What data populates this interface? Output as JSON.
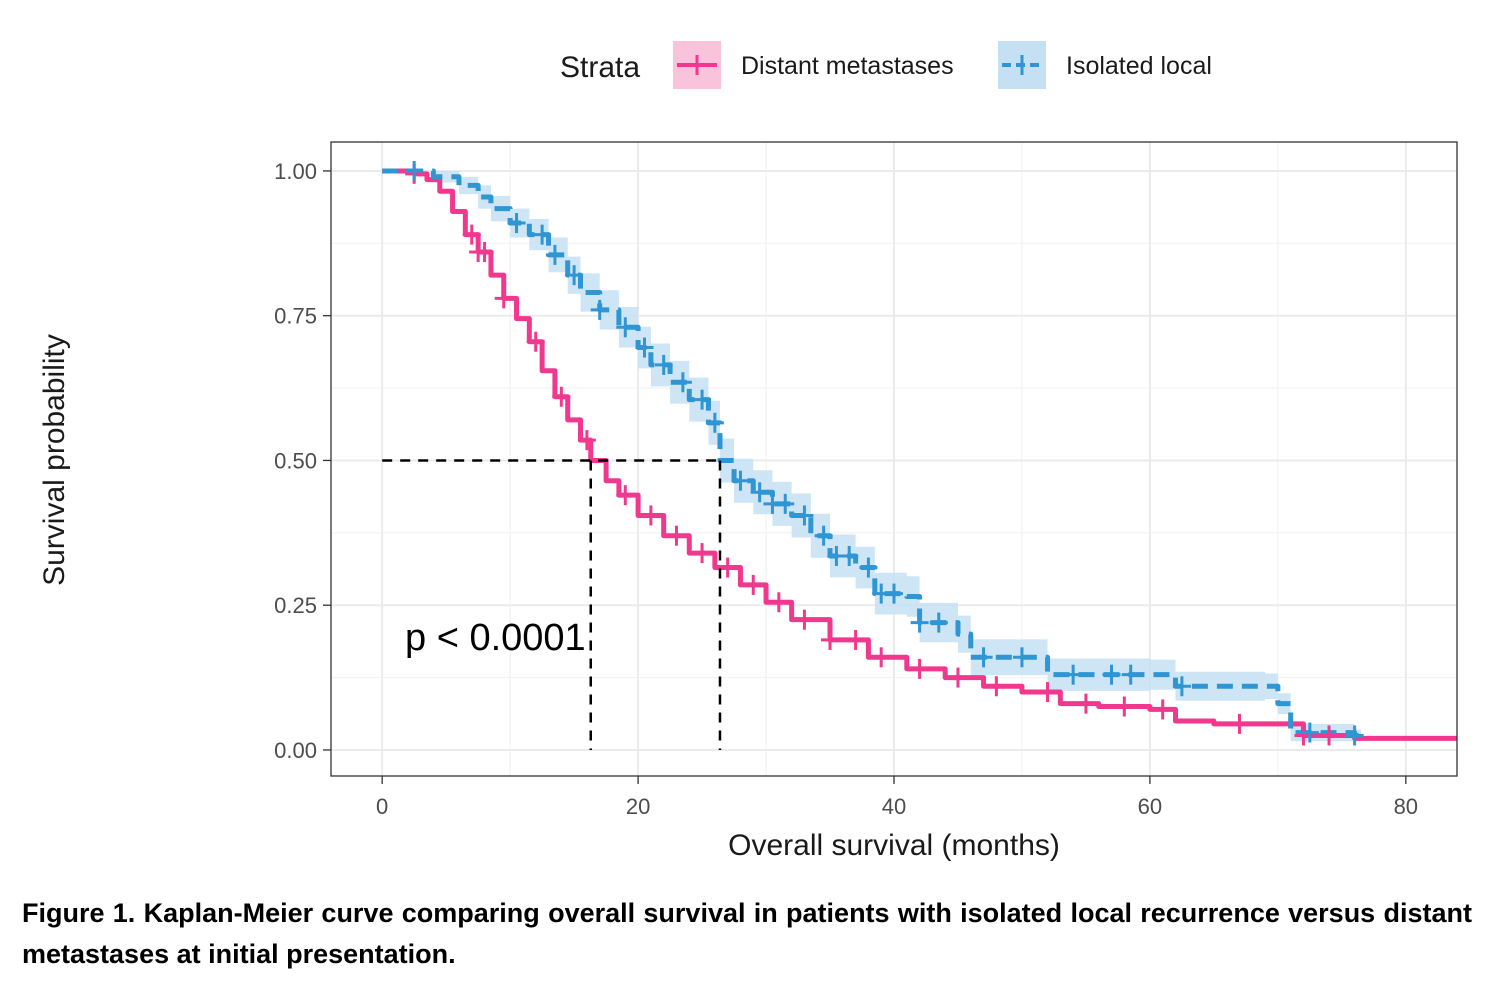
{
  "chart_data": {
    "type": "line",
    "subtype": "kaplan-meier",
    "xlabel": "Overall survival (months)",
    "ylabel": "Survival probability",
    "xlim": [
      -4,
      84
    ],
    "ylim": [
      -0.045,
      1.05
    ],
    "x_ticks": [
      0,
      20,
      40,
      60,
      80
    ],
    "x_tick_labels": [
      "0",
      "20",
      "40",
      "60",
      "80"
    ],
    "y_ticks": [
      0,
      0.25,
      0.5,
      0.75,
      1.0
    ],
    "y_tick_labels": [
      "0.00",
      "0.25",
      "0.50",
      "0.75",
      "1.00"
    ],
    "grid": true,
    "legend": {
      "title": "Strata",
      "position": "top",
      "entries": [
        "Distant metastases",
        "Isolated local"
      ]
    },
    "annotation": "p < 0.0001",
    "median_lines": {
      "y": 0.5,
      "x": [
        16.3,
        26.4
      ]
    },
    "series": [
      {
        "name": "Distant metastases",
        "color": "#F0388F",
        "line_style": "solid",
        "points": [
          [
            0,
            1.0
          ],
          [
            1.5,
            1.0
          ],
          [
            2.5,
            0.995
          ],
          [
            3.5,
            0.985
          ],
          [
            4.5,
            0.965
          ],
          [
            5.5,
            0.93
          ],
          [
            6.5,
            0.89
          ],
          [
            7.5,
            0.86
          ],
          [
            8.5,
            0.82
          ],
          [
            9.5,
            0.78
          ],
          [
            10.5,
            0.745
          ],
          [
            11.5,
            0.705
          ],
          [
            12.5,
            0.655
          ],
          [
            13.5,
            0.61
          ],
          [
            14.5,
            0.57
          ],
          [
            15.5,
            0.535
          ],
          [
            16.3,
            0.5
          ],
          [
            17.5,
            0.465
          ],
          [
            18.5,
            0.44
          ],
          [
            20,
            0.405
          ],
          [
            22,
            0.37
          ],
          [
            24,
            0.34
          ],
          [
            26,
            0.315
          ],
          [
            28,
            0.285
          ],
          [
            30,
            0.255
          ],
          [
            32,
            0.225
          ],
          [
            35,
            0.19
          ],
          [
            38,
            0.16
          ],
          [
            41,
            0.14
          ],
          [
            44,
            0.125
          ],
          [
            47,
            0.11
          ],
          [
            50,
            0.1
          ],
          [
            53,
            0.08
          ],
          [
            56,
            0.075
          ],
          [
            60,
            0.07
          ],
          [
            62,
            0.05
          ],
          [
            65,
            0.045
          ],
          [
            70,
            0.045
          ],
          [
            72,
            0.025
          ],
          [
            76,
            0.02
          ],
          [
            84,
            0.02
          ]
        ],
        "censor_x": [
          2.5,
          7,
          7.5,
          8,
          9.5,
          12,
          14,
          16,
          19,
          21,
          23,
          25,
          27,
          29,
          31,
          33,
          35,
          37,
          39,
          42,
          45,
          48,
          52,
          55,
          58,
          61,
          67,
          72,
          74
        ]
      },
      {
        "name": "Isolated local",
        "color": "#2F95D3",
        "line_style": "dashed",
        "points": [
          [
            0,
            1.0
          ],
          [
            2.5,
            1.0
          ],
          [
            4,
            0.99
          ],
          [
            6,
            0.975
          ],
          [
            7.5,
            0.955
          ],
          [
            8.5,
            0.935
          ],
          [
            10,
            0.91
          ],
          [
            11.5,
            0.89
          ],
          [
            13,
            0.855
          ],
          [
            14.5,
            0.82
          ],
          [
            15.5,
            0.79
          ],
          [
            17,
            0.76
          ],
          [
            18.5,
            0.73
          ],
          [
            20,
            0.695
          ],
          [
            21,
            0.665
          ],
          [
            22.5,
            0.635
          ],
          [
            24,
            0.605
          ],
          [
            25.5,
            0.565
          ],
          [
            26.4,
            0.5
          ],
          [
            27.5,
            0.465
          ],
          [
            29,
            0.445
          ],
          [
            30.5,
            0.425
          ],
          [
            32,
            0.405
          ],
          [
            33.5,
            0.37
          ],
          [
            35,
            0.335
          ],
          [
            37,
            0.315
          ],
          [
            38.5,
            0.27
          ],
          [
            41,
            0.265
          ],
          [
            42,
            0.22
          ],
          [
            45,
            0.2
          ],
          [
            46,
            0.16
          ],
          [
            52,
            0.13
          ],
          [
            60,
            0.13
          ],
          [
            62,
            0.11
          ],
          [
            69,
            0.11
          ],
          [
            70,
            0.08
          ],
          [
            71,
            0.03
          ],
          [
            76,
            0.025
          ],
          [
            76.5,
            0.02
          ]
        ],
        "ci_half_width": [
          0,
          0,
          0.01,
          0.015,
          0.02,
          0.022,
          0.025,
          0.027,
          0.03,
          0.032,
          0.033,
          0.034,
          0.035,
          0.036,
          0.037,
          0.037,
          0.038,
          0.038,
          0.038,
          0.038,
          0.038,
          0.038,
          0.038,
          0.038,
          0.037,
          0.036,
          0.036,
          0.035,
          0.034,
          0.032,
          0.031,
          0.028,
          0.026,
          0.025,
          0.022,
          0.018,
          0.015,
          0.01,
          0.01
        ],
        "censor_x": [
          2.5,
          10.5,
          12.5,
          13.5,
          15,
          17,
          19,
          20.5,
          22,
          23.5,
          25,
          26,
          28,
          29.5,
          30.5,
          31.5,
          33,
          34.5,
          35.5,
          36.5,
          38,
          39,
          40,
          42,
          43.5,
          47,
          50,
          54,
          57,
          58.5,
          62.5,
          72.5,
          76
        ]
      }
    ]
  },
  "caption": "Figure 1. Kaplan-Meier curve comparing overall survival in patients with isolated local recurrence versus distant metastases at initial presentation."
}
